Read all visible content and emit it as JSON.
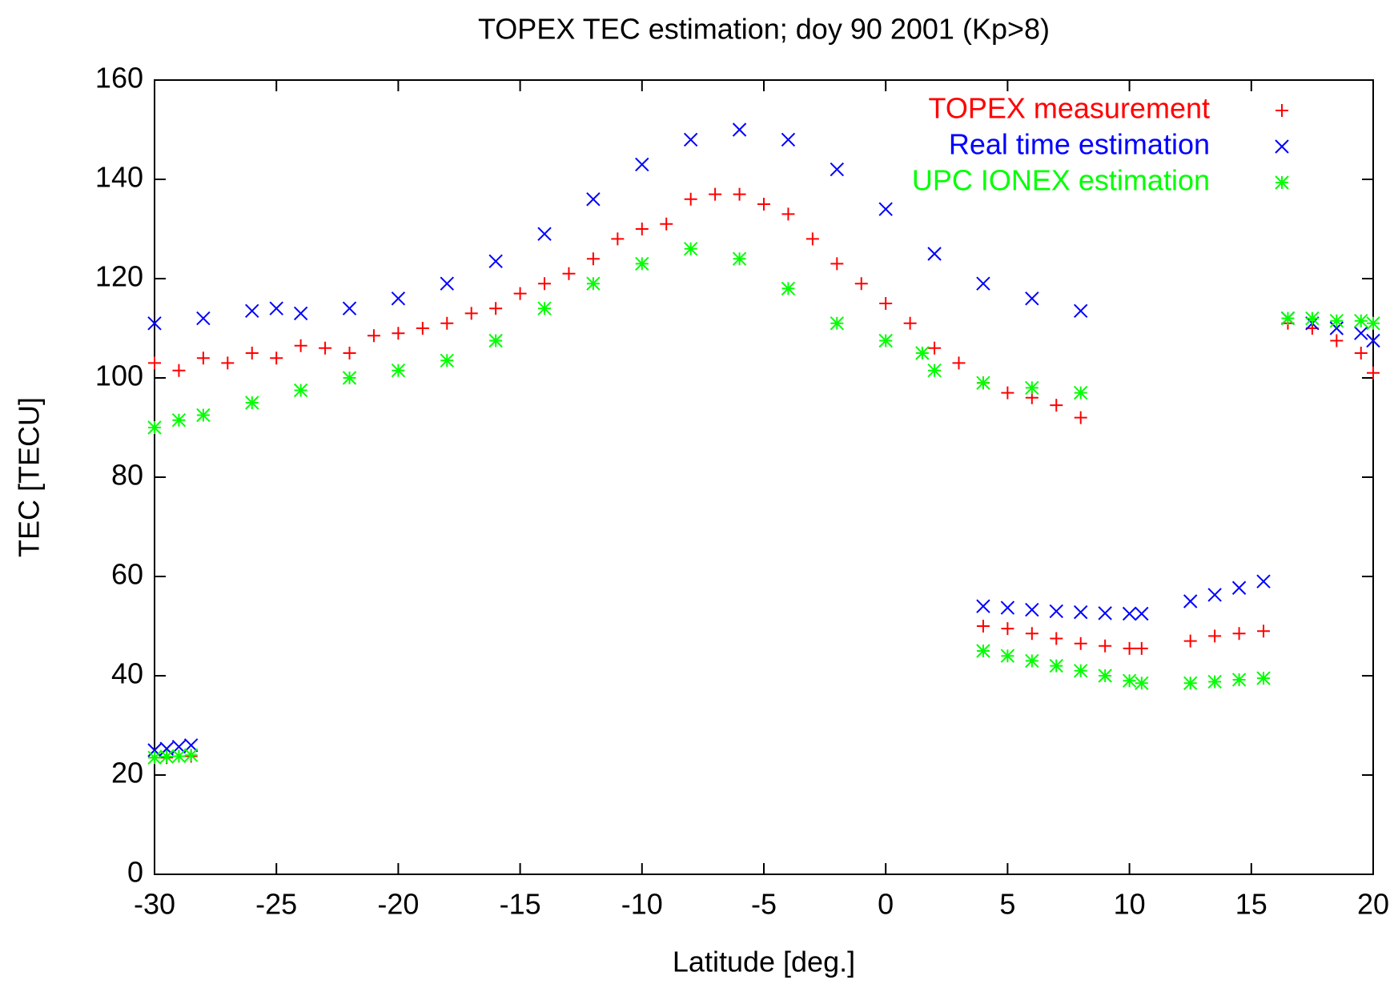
{
  "chart_data": {
    "type": "scatter",
    "title": "TOPEX TEC estimation; doy 90 2001 (Kp>8)",
    "x_label": "Latitude [deg.]",
    "y_label": "TEC [TECU]",
    "xlim": [
      -30,
      20
    ],
    "xticks": [
      -30,
      -25,
      -20,
      -15,
      -10,
      -5,
      0,
      5,
      10,
      15,
      20
    ],
    "ylim": [
      0,
      160
    ],
    "yticks": [
      0,
      20,
      40,
      60,
      80,
      100,
      120,
      140,
      160
    ],
    "legend": "top-right",
    "series": [
      {
        "name": "TOPEX measurement",
        "color": "#ff0000",
        "marker": "plus",
        "x": [
          -30,
          -29.5,
          -29,
          -28.5,
          -30,
          -29,
          -28,
          -27,
          -26,
          -25,
          -24,
          -23,
          -22,
          -21,
          -20,
          -19,
          -18,
          -17,
          -16,
          -15,
          -14,
          -13,
          -12,
          -11,
          -10,
          -9,
          -8,
          -7,
          -6,
          -5,
          -4,
          -3,
          -2,
          -1,
          0,
          1,
          2,
          3,
          4,
          5,
          6,
          7,
          8,
          4,
          5,
          6,
          7,
          8,
          9,
          10,
          10.5,
          12.5,
          13.5,
          14.5,
          15.5,
          16.5,
          17.5,
          18.5,
          19.5,
          20
        ],
        "values": [
          23.5,
          23.5,
          23.8,
          23.8,
          103,
          101.5,
          104,
          103,
          105,
          104,
          106.5,
          106,
          105,
          108.5,
          109,
          110,
          111,
          113,
          114,
          117,
          119,
          121,
          124,
          128,
          130,
          131,
          136,
          137,
          137,
          135,
          133,
          128,
          123,
          119,
          115,
          111,
          106,
          103,
          99,
          97,
          96,
          94.5,
          92,
          50,
          49.5,
          48.5,
          47.5,
          46.5,
          46,
          45.5,
          45.5,
          47,
          48,
          48.5,
          49,
          111,
          110,
          107.5,
          105,
          101
        ]
      },
      {
        "name": "Real time estimation",
        "color": "#0000ff",
        "marker": "cross",
        "x": [
          -30,
          -29.5,
          -29,
          -28.5,
          -30,
          -28,
          -26,
          -25,
          -24,
          -22,
          -20,
          -18,
          -16,
          -14,
          -12,
          -10,
          -8,
          -6,
          -4,
          -2,
          0,
          2,
          4,
          6,
          8,
          4,
          5,
          6,
          7,
          8,
          9,
          10,
          10.5,
          12.5,
          13.5,
          14.5,
          15.5,
          16.5,
          17.5,
          18.5,
          19.5,
          20
        ],
        "values": [
          25,
          25.3,
          25.7,
          26,
          111,
          112,
          113.5,
          114,
          113,
          114,
          116,
          119,
          123.5,
          129,
          136,
          143,
          148,
          150,
          148,
          142,
          134,
          125,
          119,
          116,
          113.5,
          54,
          53.7,
          53.3,
          53,
          52.8,
          52.6,
          52.5,
          52.5,
          55,
          56.3,
          57.7,
          59,
          112,
          111,
          110,
          109,
          107.5
        ]
      },
      {
        "name": "UPC IONEX estimation",
        "color": "#00ff00",
        "marker": "star",
        "x": [
          -30,
          -29.5,
          -29,
          -28.5,
          -30,
          -29,
          -28,
          -26,
          -24,
          -22,
          -20,
          -18,
          -16,
          -14,
          -12,
          -10,
          -8,
          -6,
          -4,
          -2,
          0,
          1.5,
          2,
          4,
          6,
          8,
          4,
          5,
          6,
          7,
          8,
          9,
          10,
          10.5,
          12.5,
          13.5,
          14.5,
          15.5,
          16.5,
          17.5,
          18.5,
          19.5,
          20
        ],
        "values": [
          23.5,
          23.7,
          23.8,
          24,
          90,
          91.5,
          92.5,
          95,
          97.5,
          100,
          101.5,
          103.5,
          107.5,
          114,
          119,
          123,
          126,
          124,
          118,
          111,
          107.5,
          105,
          101.5,
          99,
          98,
          97,
          45,
          44,
          43,
          42,
          41,
          40,
          39,
          38.5,
          38.5,
          38.8,
          39.2,
          39.5,
          112,
          112,
          111.5,
          111.5,
          111
        ]
      }
    ]
  }
}
